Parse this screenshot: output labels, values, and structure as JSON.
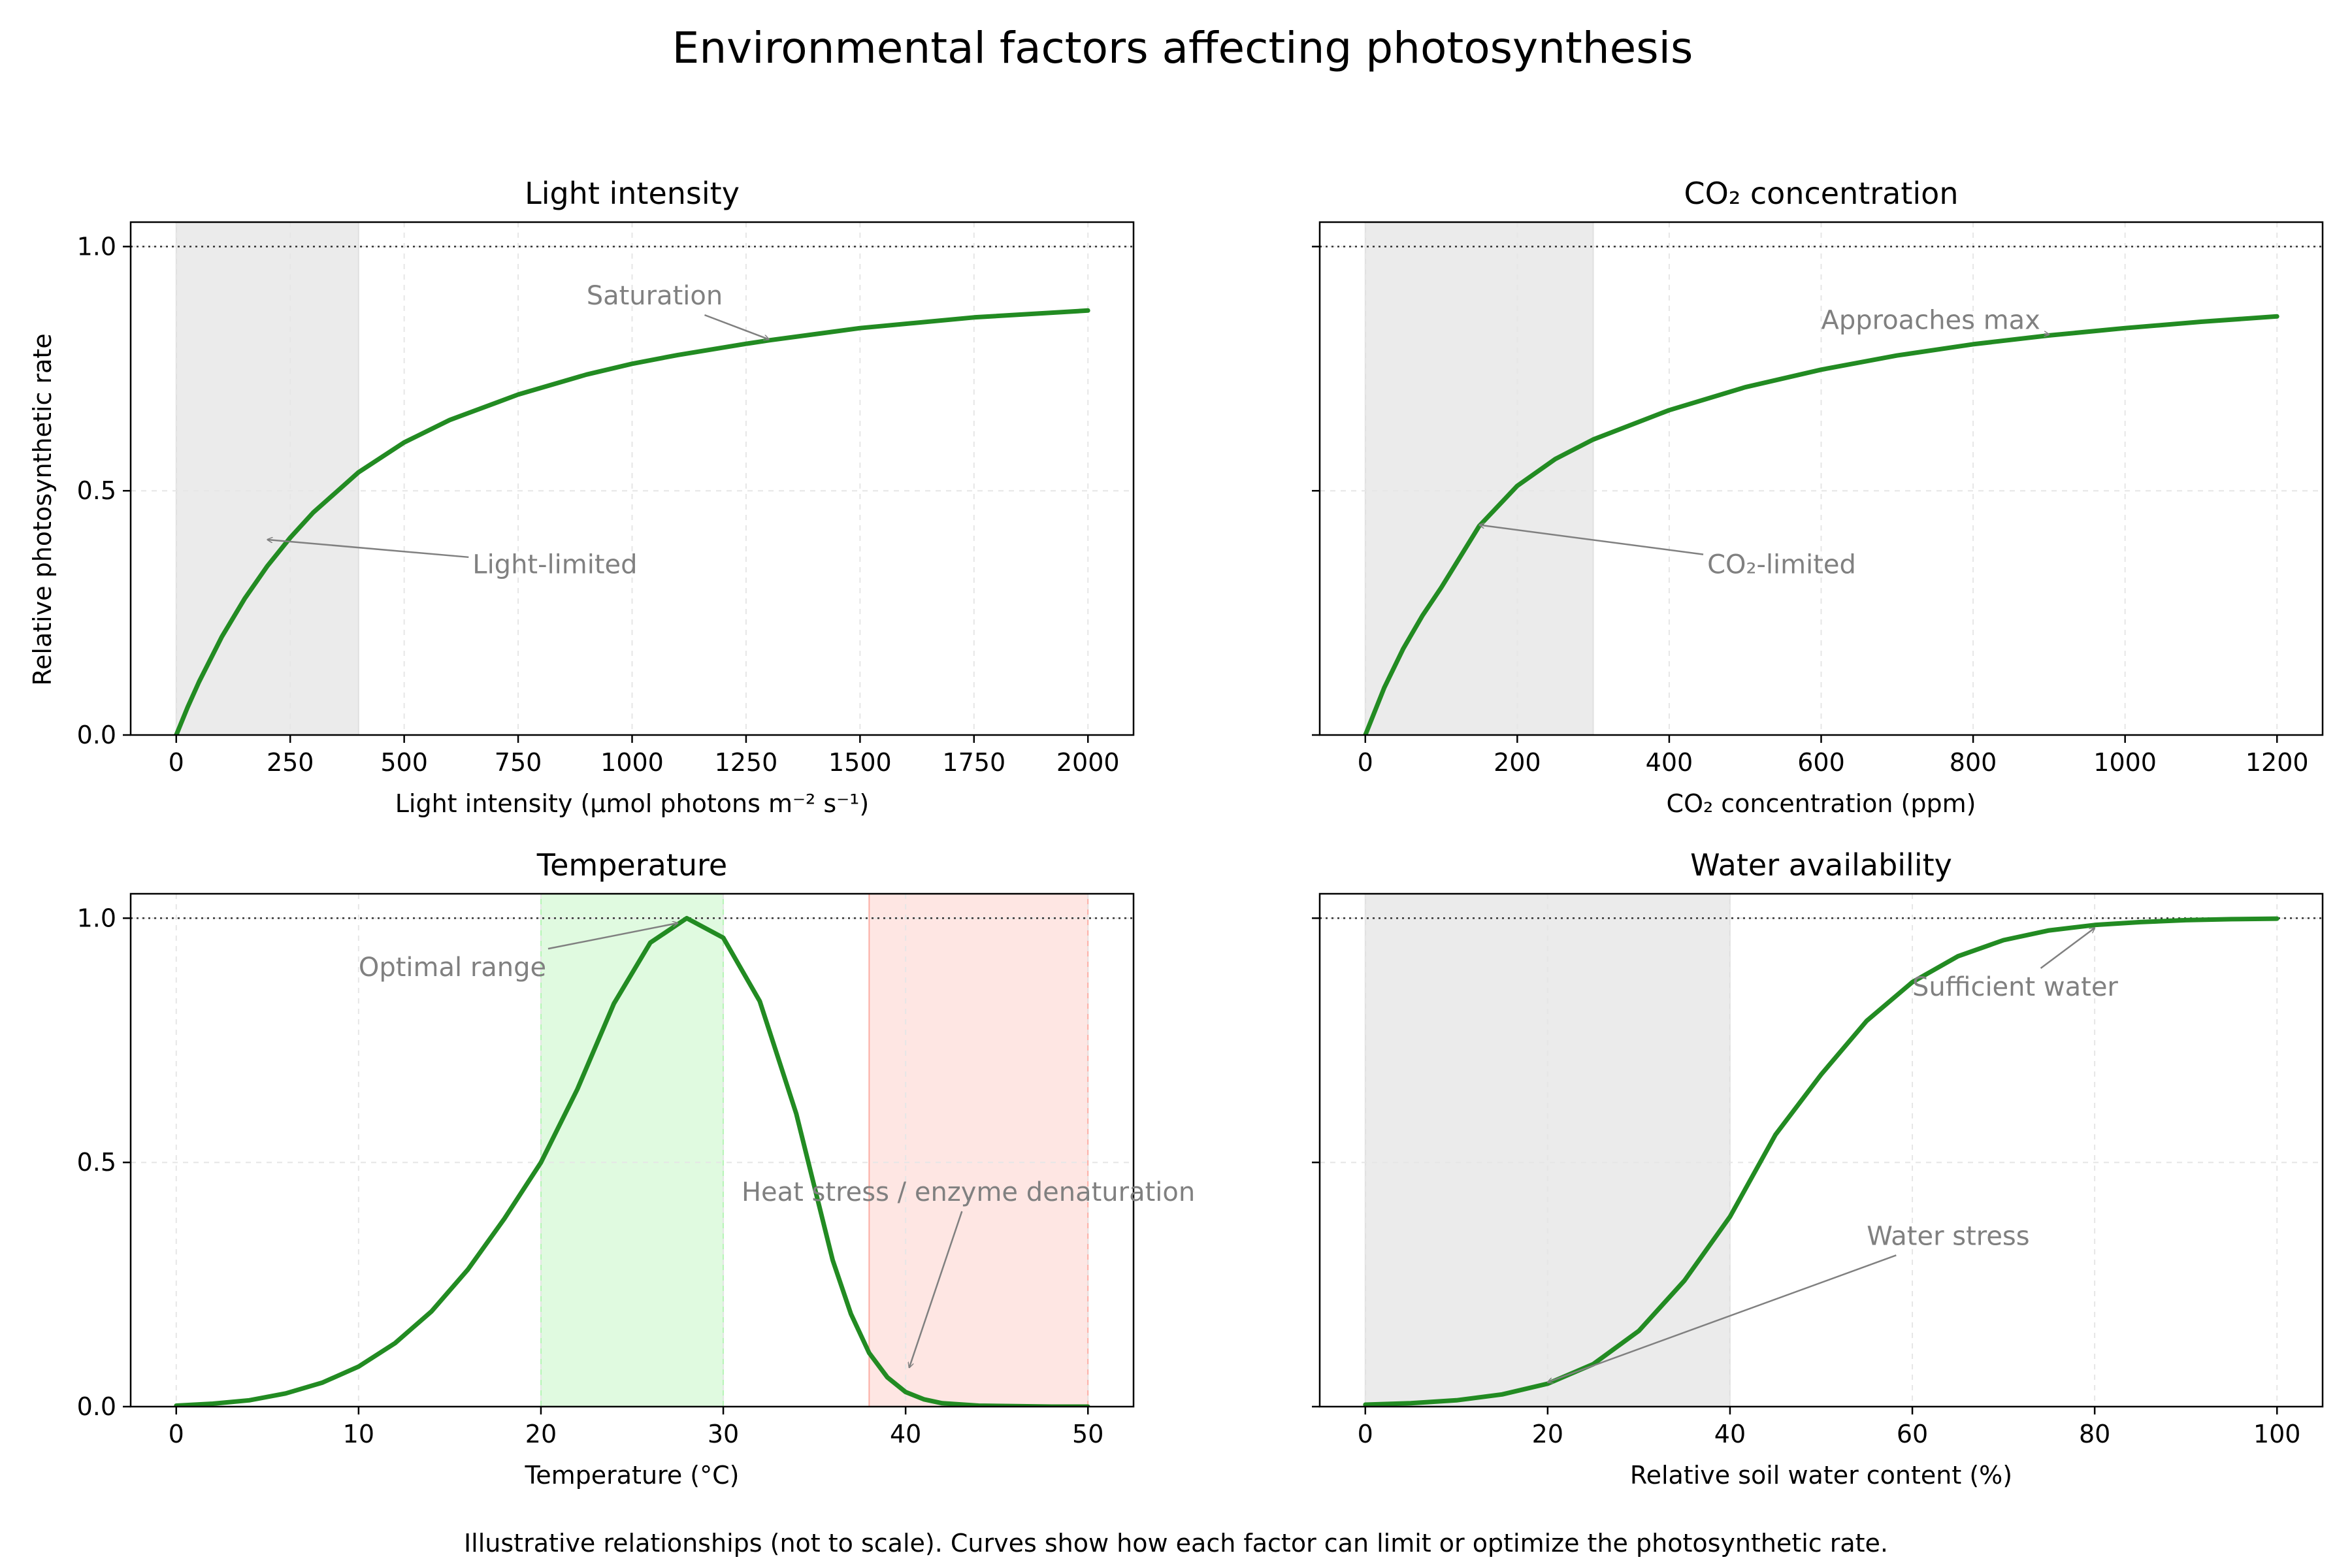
{
  "figure": {
    "title": "Environmental factors affecting photosynthesis",
    "caption": "Illustrative relationships (not to scale). Curves show how each factor can limit or optimize the photosynthetic rate.",
    "shared_ylabel": "Relative photosynthetic rate"
  },
  "colors": {
    "curve": "#228b22",
    "shade_gray": "#d3d3d3",
    "shade_green": "#90ee90",
    "shade_red": "#fa8072",
    "annotation": "#808080",
    "grid": "#e6e6e6"
  },
  "chart_data": [
    {
      "type": "line",
      "title": "Light intensity",
      "xlabel": "Light intensity (µmol photons m⁻² s⁻¹)",
      "ylabel": "Relative photosynthetic rate",
      "xlim": [
        -100,
        2100
      ],
      "ylim": [
        0,
        1.05
      ],
      "xticks": [
        0,
        250,
        500,
        750,
        1000,
        1250,
        1500,
        1750,
        2000
      ],
      "yticks": [
        0.0,
        0.5,
        1.0
      ],
      "grid": true,
      "reference_line": 1.0,
      "shaded_regions": [
        {
          "x": [
            0,
            400
          ],
          "color": "gray"
        }
      ],
      "x": [
        0,
        25,
        50,
        100,
        150,
        200,
        250,
        300,
        400,
        500,
        600,
        750,
        900,
        1000,
        1100,
        1250,
        1300,
        1500,
        1750,
        2000
      ],
      "y": [
        0,
        0.057,
        0.109,
        0.201,
        0.279,
        0.346,
        0.404,
        0.455,
        0.538,
        0.599,
        0.645,
        0.697,
        0.738,
        0.76,
        0.778,
        0.801,
        0.808,
        0.833,
        0.855,
        0.869
      ],
      "annotations": [
        {
          "text": "Saturation",
          "point": [
            1300,
            0.81
          ],
          "text_at": [
            900,
            0.9
          ]
        },
        {
          "text": "Light-limited",
          "point": [
            200,
            0.4
          ],
          "text_at": [
            650,
            0.35
          ]
        }
      ]
    },
    {
      "type": "line",
      "title": "CO₂ concentration",
      "xlabel": "CO₂ concentration (ppm)",
      "ylabel": "",
      "xlim": [
        -60,
        1260
      ],
      "ylim": [
        0,
        1.05
      ],
      "xticks": [
        0,
        200,
        400,
        600,
        800,
        1000,
        1200
      ],
      "yticks": [
        0.0,
        0.5,
        1.0
      ],
      "grid": true,
      "reference_line": 1.0,
      "shaded_regions": [
        {
          "x": [
            0,
            300
          ],
          "color": "gray"
        }
      ],
      "x": [
        0,
        25,
        50,
        75,
        100,
        150,
        200,
        250,
        300,
        400,
        500,
        600,
        700,
        800,
        900,
        1000,
        1100,
        1200
      ],
      "y": [
        0,
        0.097,
        0.177,
        0.244,
        0.302,
        0.428,
        0.51,
        0.565,
        0.605,
        0.665,
        0.712,
        0.748,
        0.777,
        0.8,
        0.818,
        0.833,
        0.846,
        0.857
      ],
      "annotations": [
        {
          "text": "Approaches max",
          "point": [
            900,
            0.82
          ],
          "text_at": [
            600,
            0.85
          ]
        },
        {
          "text": "CO₂-limited",
          "point": [
            150,
            0.43
          ],
          "text_at": [
            450,
            0.35
          ]
        }
      ]
    },
    {
      "type": "line",
      "title": "Temperature",
      "xlabel": "Temperature (°C)",
      "ylabel": "",
      "xlim": [
        -2.5,
        52.5
      ],
      "ylim": [
        0,
        1.05
      ],
      "xticks": [
        0,
        10,
        20,
        30,
        40,
        50
      ],
      "yticks": [
        0.0,
        0.5,
        1.0
      ],
      "grid": true,
      "reference_line": 1.0,
      "shaded_regions": [
        {
          "x": [
            20,
            30
          ],
          "color": "green"
        },
        {
          "x": [
            38,
            50
          ],
          "color": "red"
        }
      ],
      "x": [
        0,
        2,
        4,
        6,
        8,
        10,
        12,
        14,
        16,
        18,
        20,
        22,
        24,
        26,
        28,
        30,
        32,
        34,
        36,
        37,
        38,
        39,
        40,
        41,
        42,
        44,
        46,
        48,
        50
      ],
      "y": [
        0.002,
        0.006,
        0.013,
        0.027,
        0.049,
        0.082,
        0.13,
        0.195,
        0.281,
        0.385,
        0.5,
        0.65,
        0.825,
        0.95,
        1.0,
        0.96,
        0.83,
        0.6,
        0.3,
        0.19,
        0.11,
        0.06,
        0.03,
        0.015,
        0.007,
        0.002,
        0.001,
        0.0,
        0.0
      ],
      "annotations": [
        {
          "text": "Optimal range",
          "point": [
            27.5,
            0.99
          ],
          "text_at": [
            10,
            0.9
          ]
        },
        {
          "text": "Heat stress / enzyme denaturation",
          "point": [
            40.2,
            0.08
          ],
          "text_at": [
            31,
            0.44
          ]
        }
      ]
    },
    {
      "type": "line",
      "title": "Water availability",
      "xlabel": "Relative soil water content (%)",
      "ylabel": "",
      "xlim": [
        -5,
        105
      ],
      "ylim": [
        0,
        1.05
      ],
      "xticks": [
        0,
        20,
        40,
        60,
        80,
        100
      ],
      "yticks": [
        0.0,
        0.5,
        1.0
      ],
      "grid": true,
      "reference_line": 1.0,
      "shaded_regions": [
        {
          "x": [
            0,
            40
          ],
          "color": "gray"
        }
      ],
      "x": [
        0,
        5,
        10,
        15,
        20,
        25,
        30,
        35,
        40,
        45,
        50,
        55,
        60,
        65,
        70,
        75,
        80,
        85,
        90,
        95,
        100
      ],
      "y": [
        0.004,
        0.007,
        0.013,
        0.025,
        0.047,
        0.087,
        0.155,
        0.258,
        0.389,
        0.557,
        0.68,
        0.79,
        0.869,
        0.922,
        0.955,
        0.975,
        0.986,
        0.992,
        0.996,
        0.998,
        0.999
      ],
      "annotations": [
        {
          "text": "Sufficient water",
          "point": [
            80,
            0.98
          ],
          "text_at": [
            60,
            0.86
          ]
        },
        {
          "text": "Water stress",
          "point": [
            20,
            0.05
          ],
          "text_at": [
            55,
            0.35
          ]
        }
      ]
    }
  ]
}
